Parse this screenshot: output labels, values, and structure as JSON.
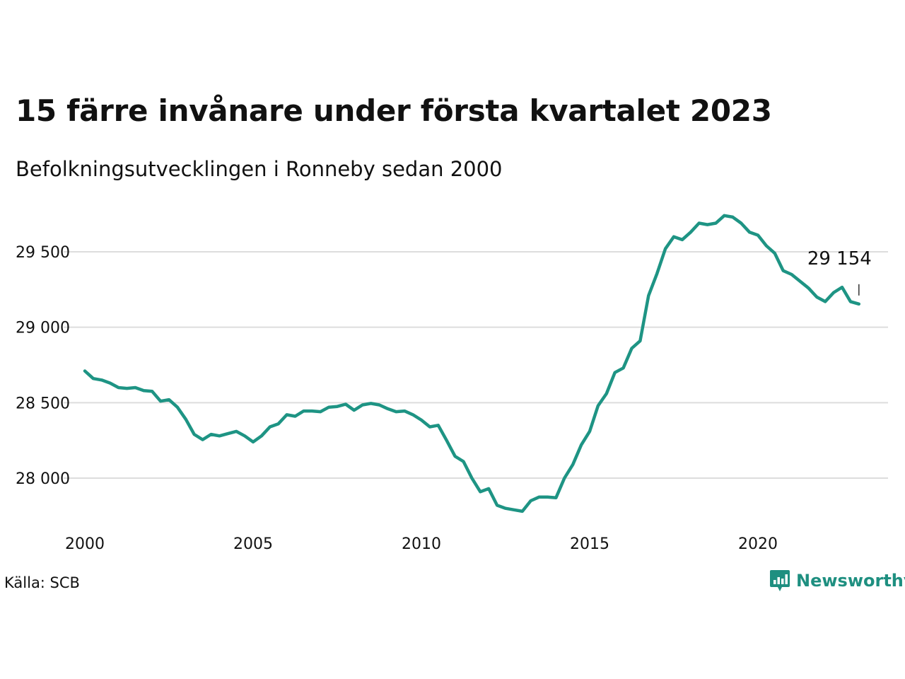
{
  "header": {
    "title": "15 färre invånare under första kvartalet 2023",
    "subtitle": "Befolkningsutvecklingen i Ronneby sedan 2000"
  },
  "footer": {
    "source": "Källa: SCB",
    "brand": "Newsworthy"
  },
  "colors": {
    "line": "#1e9484",
    "grid": "#dddddd",
    "text": "#111111",
    "brand": "#1e8f80"
  },
  "icons": {
    "brand_logo": "bar-chart-speech-bubble-icon"
  },
  "chart_data": {
    "type": "line",
    "title": "15 färre invånare under första kvartalet 2023",
    "subtitle": "Befolkningsutvecklingen i Ronneby sedan 2000",
    "xlabel": "",
    "ylabel": "",
    "x_ticks": [
      "2000",
      "2005",
      "2010",
      "2015",
      "2020"
    ],
    "y_ticks": [
      "28 000",
      "28 500",
      "29 000",
      "29 500"
    ],
    "xlim": [
      2000,
      2023.5
    ],
    "ylim": [
      27750,
      29800
    ],
    "grid": true,
    "last_value_label": "29 154",
    "series": [
      {
        "x": [
          2000.0,
          2000.25,
          2000.5,
          2000.75,
          2001.0,
          2001.25,
          2001.5,
          2001.75,
          2002.0,
          2002.25,
          2002.5,
          2002.75,
          2003.0,
          2003.25,
          2003.5,
          2003.75,
          2004.0,
          2004.25,
          2004.5,
          2004.75,
          2005.0,
          2005.25,
          2005.5,
          2005.75,
          2006.0,
          2006.25,
          2006.5,
          2006.75,
          2007.0,
          2007.25,
          2007.5,
          2007.75,
          2008.0,
          2008.25,
          2008.5,
          2008.75,
          2009.0,
          2009.25,
          2009.5,
          2009.75,
          2010.0,
          2010.25,
          2010.5,
          2010.75,
          2011.0,
          2011.25,
          2011.5,
          2011.75,
          2012.0,
          2012.25,
          2012.5,
          2012.75,
          2013.0,
          2013.25,
          2013.5,
          2013.75,
          2014.0,
          2014.25,
          2014.5,
          2014.75,
          2015.0,
          2015.25,
          2015.5,
          2015.75,
          2016.0,
          2016.25,
          2016.5,
          2016.75,
          2017.0,
          2017.25,
          2017.5,
          2017.75,
          2018.0,
          2018.25,
          2018.5,
          2018.75,
          2019.0,
          2019.25,
          2019.5,
          2019.75,
          2020.0,
          2020.25,
          2020.5,
          2020.75,
          2021.0,
          2021.25,
          2021.5,
          2021.75,
          2022.0,
          2022.25,
          2022.5,
          2022.75,
          2023.0
        ],
        "values": [
          28710,
          28660,
          28650,
          28630,
          28600,
          28595,
          28600,
          28580,
          28575,
          28510,
          28520,
          28470,
          28390,
          28290,
          28255,
          28290,
          28280,
          28295,
          28310,
          28280,
          28240,
          28280,
          28340,
          28360,
          28420,
          28410,
          28445,
          28445,
          28440,
          28470,
          28475,
          28490,
          28450,
          28485,
          28495,
          28485,
          28460,
          28440,
          28445,
          28420,
          28385,
          28340,
          28350,
          28250,
          28145,
          28110,
          28000,
          27910,
          27930,
          27820,
          27800,
          27790,
          27780,
          27850,
          27875,
          27875,
          27870,
          28000,
          28090,
          28220,
          28310,
          28480,
          28560,
          28700,
          28730,
          28860,
          28910,
          29210,
          29355,
          29520,
          29600,
          29580,
          29630,
          29690,
          29680,
          29690,
          29740,
          29730,
          29690,
          29630,
          29610,
          29540,
          29490,
          29375,
          29350,
          29305,
          29260,
          29200,
          29170,
          29230,
          29265,
          29170,
          29154
        ]
      }
    ]
  }
}
